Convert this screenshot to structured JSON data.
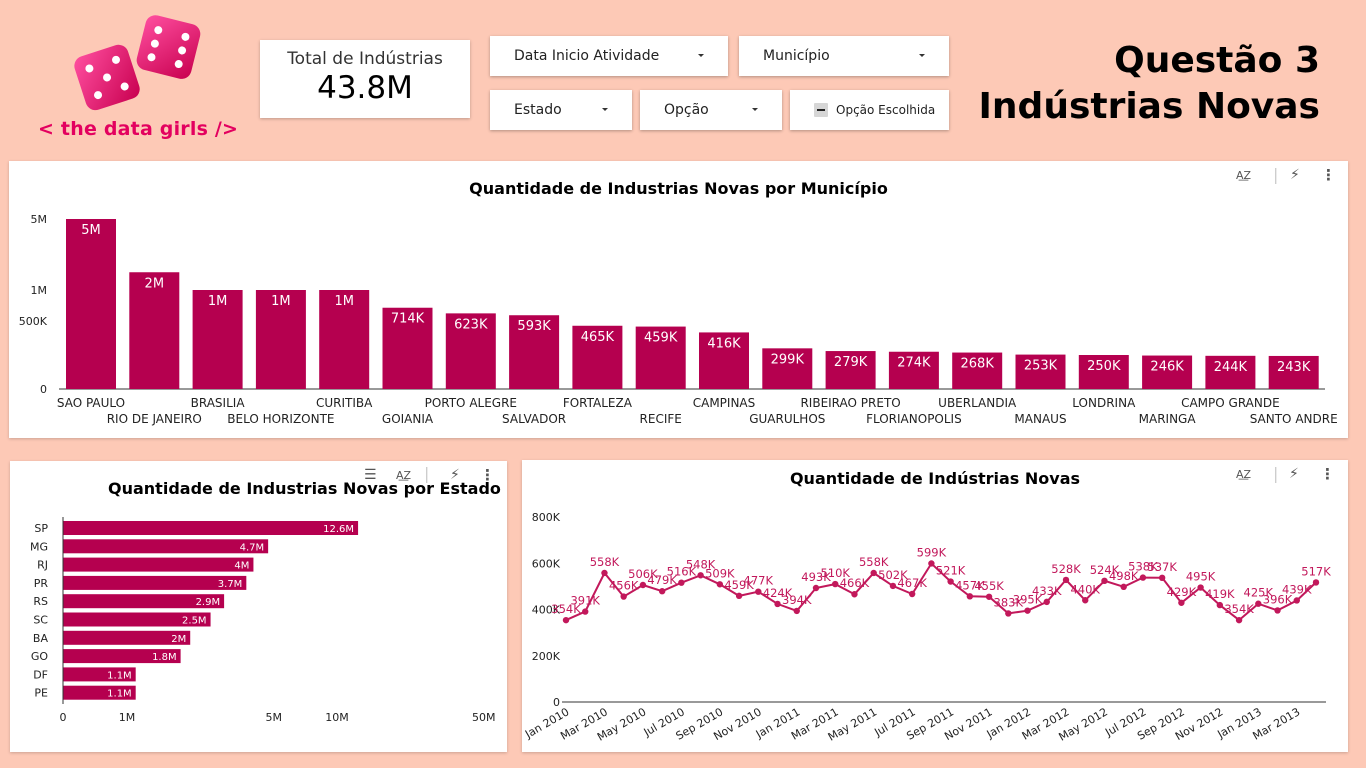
{
  "header": {
    "logo_text": "< the data girls />",
    "kpi_label": "Total de Indústrias",
    "kpi_value": "43.8M",
    "title_line1": "Questão 3",
    "title_line2": "Indústrias Novas"
  },
  "filters": {
    "data_inicio": "Data Inicio Atividade",
    "municipio": "Município",
    "estado": "Estado",
    "opcao": "Opção",
    "opcao_escolhida": "Opção Escolhida"
  },
  "colors": {
    "bar": "#b5004f",
    "line": "#c2185b",
    "accent": "#e3005f",
    "background": "#fdc9b6"
  },
  "chart_data": [
    {
      "type": "bar",
      "title": "Quantidade de Industrias Novas por Município",
      "categories": [
        "SAO PAULO",
        "RIO DE JANEIRO",
        "BRASILIA",
        "BELO HORIZONTE",
        "CURITIBA",
        "GOIANIA",
        "PORTO ALEGRE",
        "SALVADOR",
        "FORTALEZA",
        "RECIFE",
        "CAMPINAS",
        "GUARULHOS",
        "RIBEIRAO PRETO",
        "FLORIANOPOLIS",
        "UBERLANDIA",
        "MANAUS",
        "LONDRINA",
        "MARINGA",
        "CAMPO GRANDE",
        "SANTO ANDRE"
      ],
      "values": [
        5000000,
        2000000,
        1000000,
        1000000,
        1000000,
        714000,
        623000,
        593000,
        465000,
        459000,
        416000,
        299000,
        279000,
        274000,
        268000,
        253000,
        250000,
        246000,
        244000,
        243000
      ],
      "labels": [
        "5M",
        "2M",
        "1M",
        "1M",
        "1M",
        "714K",
        "623K",
        "593K",
        "465K",
        "459K",
        "416K",
        "299K",
        "279K",
        "274K",
        "268K",
        "253K",
        "250K",
        "246K",
        "244K",
        "243K"
      ],
      "y_ticks": [
        "0",
        "500K",
        "1M",
        "5M"
      ],
      "scale": "log-like"
    },
    {
      "type": "bar",
      "orientation": "horizontal",
      "title": "Quantidade de Industrias Novas por Estado",
      "categories": [
        "SP",
        "MG",
        "RJ",
        "PR",
        "RS",
        "SC",
        "BA",
        "GO",
        "DF",
        "PE"
      ],
      "values": [
        12600000,
        4700000,
        4000000,
        3700000,
        2900000,
        2500000,
        2000000,
        1800000,
        1100000,
        1100000
      ],
      "labels": [
        "12.6M",
        "4.7M",
        "4M",
        "3.7M",
        "2.9M",
        "2.5M",
        "2M",
        "1.8M",
        "1.1M",
        "1.1M"
      ],
      "x_ticks": [
        "0",
        "1M",
        "5M",
        "10M",
        "50M"
      ],
      "scale": "log"
    },
    {
      "type": "line",
      "title": "Quantidade de Indústrias Novas",
      "x": [
        "Jan 2010",
        "Feb 2010",
        "Mar 2010",
        "Apr 2010",
        "May 2010",
        "Jun 2010",
        "Jul 2010",
        "Aug 2010",
        "Sep 2010",
        "Oct 2010",
        "Nov 2010",
        "Dec 2010",
        "Jan 2011",
        "Feb 2011",
        "Mar 2011",
        "Apr 2011",
        "May 2011",
        "Jun 2011",
        "Jul 2011",
        "Aug 2011",
        "Sep 2011",
        "Oct 2011",
        "Nov 2011",
        "Dec 2011",
        "Jan 2012",
        "Feb 2012",
        "Mar 2012",
        "Apr 2012",
        "May 2012",
        "Jun 2012",
        "Jul 2012",
        "Aug 2012",
        "Sep 2012",
        "Oct 2012",
        "Nov 2012",
        "Dec 2012",
        "Jan 2013",
        "Feb 2013",
        "Mar 2013",
        "Apr 2013"
      ],
      "values": [
        354000,
        391000,
        558000,
        456000,
        506000,
        479000,
        516000,
        548000,
        509000,
        459000,
        477000,
        424000,
        394000,
        493000,
        510000,
        466000,
        558000,
        502000,
        467000,
        599000,
        521000,
        457000,
        455000,
        383000,
        395000,
        433000,
        528000,
        440000,
        524000,
        498000,
        538000,
        537000,
        429000,
        495000,
        419000,
        354000,
        425000,
        396000,
        439000,
        517000
      ],
      "labels": [
        "354K",
        "391K",
        "558K",
        "456K",
        "506K",
        "479K",
        "516K",
        "548K",
        "509K",
        "459K",
        "477K",
        "424K",
        "394K",
        "493K",
        "510K",
        "466K",
        "558K",
        "502K",
        "467K",
        "599K",
        "521K",
        "457K",
        "455K",
        "383K",
        "395K",
        "433K",
        "528K",
        "440K",
        "524K",
        "498K",
        "538K",
        "537K",
        "429K",
        "495K",
        "419K",
        "354K",
        "425K",
        "396K",
        "439K",
        "517K"
      ],
      "x_ticks": [
        "Jan 2010",
        "Mar 2010",
        "May 2010",
        "Jul 2010",
        "Sep 2010",
        "Nov 2010",
        "Jan 2011",
        "Mar 2011",
        "May 2011",
        "Jul 2011",
        "Sep 2011",
        "Nov 2011",
        "Jan 2012",
        "Mar 2012",
        "May 2012",
        "Jul 2012",
        "Sep 2012",
        "Nov 2012",
        "Jan 2013",
        "Mar 2013"
      ],
      "y_ticks": [
        "0",
        "200K",
        "400K",
        "600K",
        "800K"
      ],
      "ylim": [
        0,
        800000
      ]
    }
  ]
}
